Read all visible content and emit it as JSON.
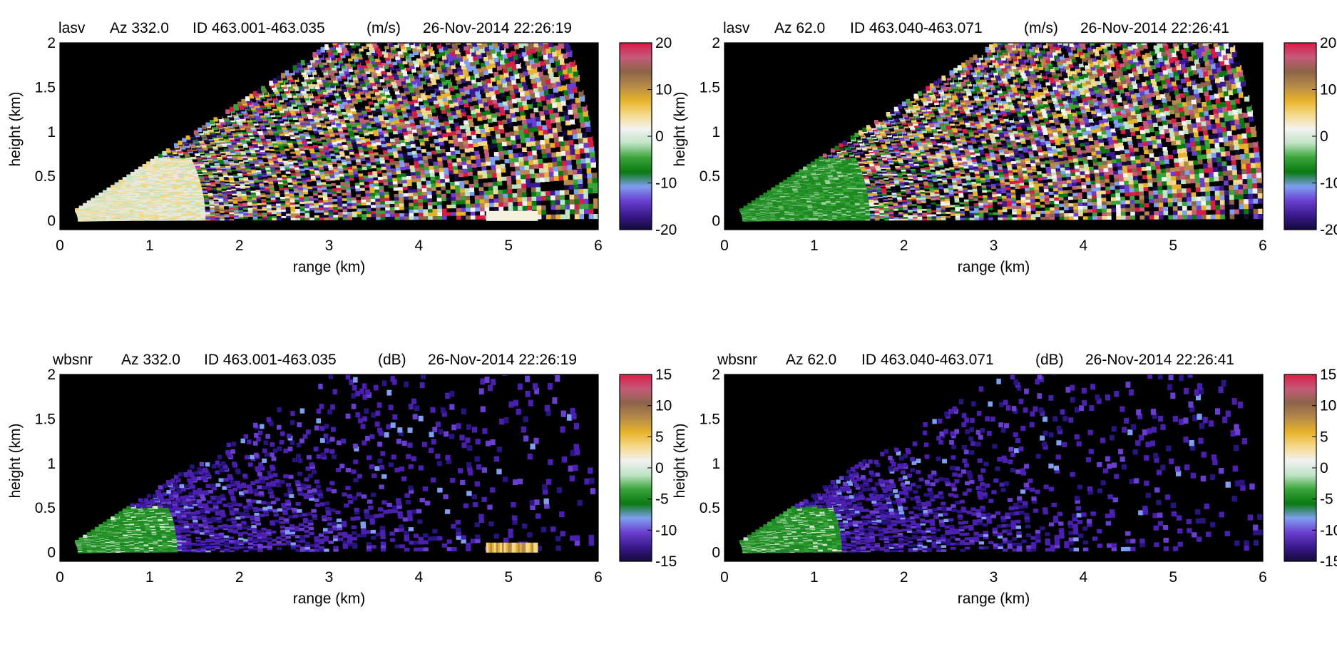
{
  "chart_data": [
    {
      "type": "heatmap",
      "variable": "lasv",
      "azimuth": "Az 332.0",
      "id_range": "ID 463.001-463.035",
      "unit": "(m/s)",
      "timestamp": "26-Nov-2014 22:26:19",
      "xlabel": "range (km)",
      "ylabel": "height (km)",
      "xlim": [
        0,
        6
      ],
      "ylim": [
        -0.1,
        2
      ],
      "x_ticks": [
        "0",
        "1",
        "2",
        "3",
        "4",
        "5",
        "6"
      ],
      "y_ticks": [
        "0",
        "0.5",
        "1",
        "1.5",
        "2"
      ],
      "colorbar": {
        "range": [
          -20,
          20
        ],
        "ticks": [
          "20",
          "10",
          "0",
          "-10",
          "-20"
        ]
      },
      "sector": {
        "range_min": 0.2,
        "range_max": 6.0,
        "elev_max_height_at_3km": 2.0
      },
      "near_field": "pale green / yellow, near 0 m/s",
      "far_field": "noise spanning full velocity range"
    },
    {
      "type": "heatmap",
      "variable": "lasv",
      "azimuth": "Az 62.0",
      "id_range": "ID 463.040-463.071",
      "unit": "(m/s)",
      "timestamp": "26-Nov-2014 22:26:41",
      "xlabel": "range (km)",
      "ylabel": "height (km)",
      "xlim": [
        0,
        6
      ],
      "ylim": [
        -0.1,
        2
      ],
      "x_ticks": [
        "0",
        "1",
        "2",
        "3",
        "4",
        "5",
        "6"
      ],
      "y_ticks": [
        "0",
        "0.5",
        "1",
        "1.5",
        "2"
      ],
      "colorbar": {
        "range": [
          -20,
          20
        ],
        "ticks": [
          "20",
          "10",
          "0",
          "-10",
          "-20"
        ]
      },
      "sector": {
        "range_min": 0.2,
        "range_max": 6.0,
        "elev_max_height_at_3km": 2.0
      },
      "near_field": "green, near -10 m/s",
      "far_field": "noise spanning full velocity range"
    },
    {
      "type": "heatmap",
      "variable": "wbsnr",
      "azimuth": "Az 332.0",
      "id_range": "ID 463.001-463.035",
      "unit": "(dB)",
      "timestamp": "26-Nov-2014 22:26:19",
      "xlabel": "range (km)",
      "ylabel": "height (km)",
      "xlim": [
        0,
        6
      ],
      "ylim": [
        -0.1,
        2
      ],
      "x_ticks": [
        "0",
        "1",
        "2",
        "3",
        "4",
        "5",
        "6"
      ],
      "y_ticks": [
        "0",
        "0.5",
        "1",
        "1.5",
        "2"
      ],
      "colorbar": {
        "range": [
          -15,
          15
        ],
        "ticks": [
          "15",
          "10",
          "5",
          "0",
          "-5",
          "-10",
          "-15"
        ]
      },
      "sector": {
        "range_min": 0.2,
        "range_max": 6.0,
        "elev_max_height_at_3km": 2.0
      },
      "near_field": "green, about -5 dB",
      "far_field": "sparse purple, about -12 dB"
    },
    {
      "type": "heatmap",
      "variable": "wbsnr",
      "azimuth": "Az 62.0",
      "id_range": "ID 463.040-463.071",
      "unit": "(dB)",
      "timestamp": "26-Nov-2014 22:26:41",
      "xlabel": "range (km)",
      "ylabel": "height (km)",
      "xlim": [
        0,
        6
      ],
      "ylim": [
        -0.1,
        2
      ],
      "x_ticks": [
        "0",
        "1",
        "2",
        "3",
        "4",
        "5",
        "6"
      ],
      "y_ticks": [
        "0",
        "0.5",
        "1",
        "1.5",
        "2"
      ],
      "colorbar": {
        "range": [
          -15,
          15
        ],
        "ticks": [
          "15",
          "10",
          "5",
          "0",
          "-5",
          "-10",
          "-15"
        ]
      },
      "sector": {
        "range_min": 0.2,
        "range_max": 6.0,
        "elev_max_height_at_3km": 2.0
      },
      "near_field": "green, about -5 dB",
      "far_field": "sparse purple, about -12 dB"
    }
  ],
  "colors": {
    "background": "#000000",
    "colormap": [
      "#140a3c",
      "#3a1a8c",
      "#6a3fd0",
      "#7f9ff0",
      "#0a7a12",
      "#3aa43a",
      "#bfe3c4",
      "#f2f2f2",
      "#f5d88a",
      "#e7b32a",
      "#b58a4a",
      "#8c6448",
      "#c65a7a",
      "#d81c46"
    ]
  }
}
